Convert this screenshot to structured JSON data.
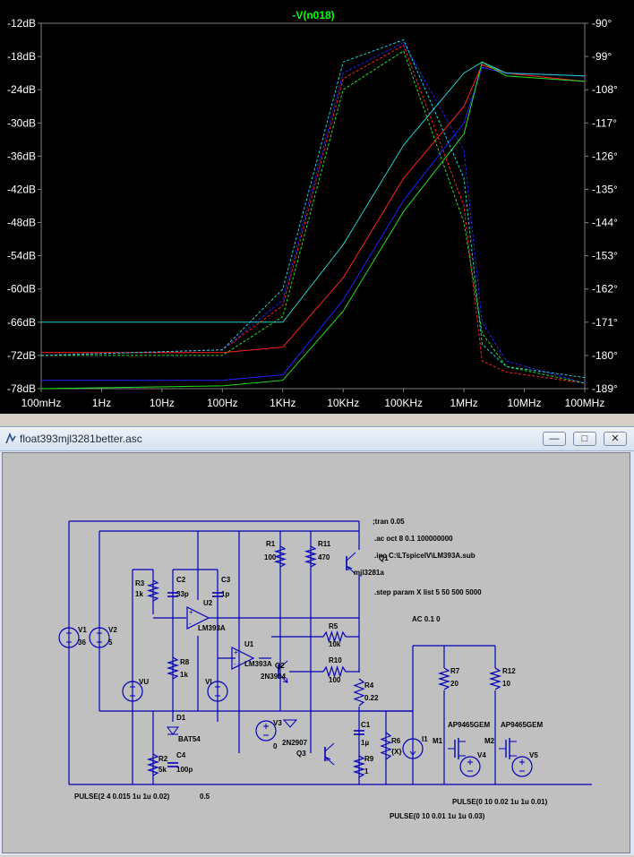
{
  "plot": {
    "trace_label": "-V(n018)",
    "trace_color": "#00ff00",
    "left_axis_ticks": [
      "-12dB",
      "-18dB",
      "-24dB",
      "-30dB",
      "-36dB",
      "-42dB",
      "-48dB",
      "-54dB",
      "-60dB",
      "-66dB",
      "-72dB",
      "-78dB"
    ],
    "right_axis_ticks": [
      "-90°",
      "-99°",
      "-108°",
      "-117°",
      "-126°",
      "-135°",
      "-144°",
      "-153°",
      "-162°",
      "-171°",
      "-180°",
      "-189°"
    ],
    "x_axis_ticks": [
      "100mHz",
      "1Hz",
      "10Hz",
      "100Hz",
      "1KHz",
      "10KHz",
      "100KHz",
      "1MHz",
      "10MHz",
      "100MHz"
    ]
  },
  "chart_data": {
    "type": "line",
    "title": "-V(n018)",
    "xscale": "log",
    "xlim_hz": [
      0.1,
      100000000
    ],
    "ylim_db": [
      -78,
      -12
    ],
    "ylim_phase_deg": [
      -189,
      -90
    ],
    "grid": false,
    "x_hz": [
      0.1,
      100,
      1000,
      10000,
      100000,
      1000000,
      2000000,
      5000000,
      100000000
    ],
    "series": [
      {
        "color": "#ff2020",
        "style": "solid",
        "values_db": [
          -71.5,
          -71.5,
          -70.5,
          -58,
          -40,
          -27,
          -19.5,
          -21,
          -22.5
        ]
      },
      {
        "color": "#ff2020",
        "style": "dashed",
        "values_db": [
          -72,
          -71,
          -63,
          -22,
          -16,
          -45,
          -73,
          -75,
          -77
        ]
      },
      {
        "color": "#2020ff",
        "style": "solid",
        "values_db": [
          -76.5,
          -76.5,
          -75.5,
          -62,
          -44,
          -30,
          -20,
          -21,
          -21.5
        ]
      },
      {
        "color": "#2020ff",
        "style": "dashed",
        "values_db": [
          -72,
          -71,
          -62,
          -21,
          -15.5,
          -35,
          -66,
          -73,
          -77
        ]
      },
      {
        "color": "#20e020",
        "style": "solid",
        "values_db": [
          -78,
          -77.5,
          -76.5,
          -64,
          -46,
          -32,
          -19,
          -21.5,
          -22.5
        ]
      },
      {
        "color": "#20e020",
        "style": "dashed",
        "values_db": [
          -72,
          -72,
          -65,
          -24,
          -17,
          -48,
          -68,
          -74,
          -77
        ]
      },
      {
        "color": "#20d0d0",
        "style": "solid",
        "values_db": [
          -66,
          -66,
          -66,
          -52,
          -34,
          -21,
          -19,
          -21,
          -21.5
        ]
      },
      {
        "color": "#20d0d0",
        "style": "dashed",
        "values_db": [
          -72,
          -71,
          -60,
          -19,
          -15,
          -40,
          -70,
          -74,
          -76
        ]
      }
    ]
  },
  "schematic_window": {
    "title": "float393mjl3281better.asc",
    "minimize_label": "—",
    "maximize_label": "□",
    "close_label": "✕"
  },
  "schematic": {
    "directives": [
      ";tran 0.05",
      ".ac oct 8 0.1 100000000",
      ".inc C:\\LTspiceIV\\LM393A.sub",
      ".step param X list 5 50 500 5000",
      "AC 0.1 0"
    ],
    "components": [
      {
        "ref": "V1",
        "value": "36"
      },
      {
        "ref": "V2",
        "value": "5"
      },
      {
        "ref": "R3",
        "value": "1k"
      },
      {
        "ref": "C2",
        "value": "33p"
      },
      {
        "ref": "C3",
        "value": "1p"
      },
      {
        "ref": "U2",
        "value": "LM393A"
      },
      {
        "ref": "R1",
        "value": "100"
      },
      {
        "ref": "R11",
        "value": "470"
      },
      {
        "ref": "Q1",
        "value": "mjl3281a"
      },
      {
        "ref": "R8",
        "value": "1k"
      },
      {
        "ref": "U1",
        "value": "LM393A"
      },
      {
        "ref": "Q2",
        "value": "2N3904"
      },
      {
        "ref": "R5",
        "value": "10k"
      },
      {
        "ref": "R10",
        "value": "100"
      },
      {
        "ref": "R4",
        "value": "0.22"
      },
      {
        "ref": "VU",
        "value": ""
      },
      {
        "ref": "VI",
        "value": ""
      },
      {
        "ref": "D1",
        "value": "BAT54"
      },
      {
        "ref": "V3",
        "value": "0"
      },
      {
        "ref": "Q3",
        "value": "2N2907"
      },
      {
        "ref": "C1",
        "value": "1µ"
      },
      {
        "ref": "R6",
        "value": "{X}"
      },
      {
        "ref": "I1",
        "value": ""
      },
      {
        "ref": "R9",
        "value": "1"
      },
      {
        "ref": "R2",
        "value": "5k"
      },
      {
        "ref": "C4",
        "value": "100p"
      },
      {
        "ref": "R7",
        "value": "20"
      },
      {
        "ref": "R12",
        "value": "10"
      },
      {
        "ref": "M1",
        "value": "AP9465GEM"
      },
      {
        "ref": "M2",
        "value": "AP9465GEM"
      },
      {
        "ref": "V4",
        "value": ""
      },
      {
        "ref": "V5",
        "value": ""
      }
    ],
    "sources": {
      "pulse_v1": "PULSE(2 4 0.015 1u 1u 0.02)",
      "vi_value": "0.5",
      "pulse_v5": "PULSE(0 10 0.02 1u 1u 0.01)",
      "pulse_v4": "PULSE(0 10 0.01 1u 1u 0.03)"
    }
  }
}
